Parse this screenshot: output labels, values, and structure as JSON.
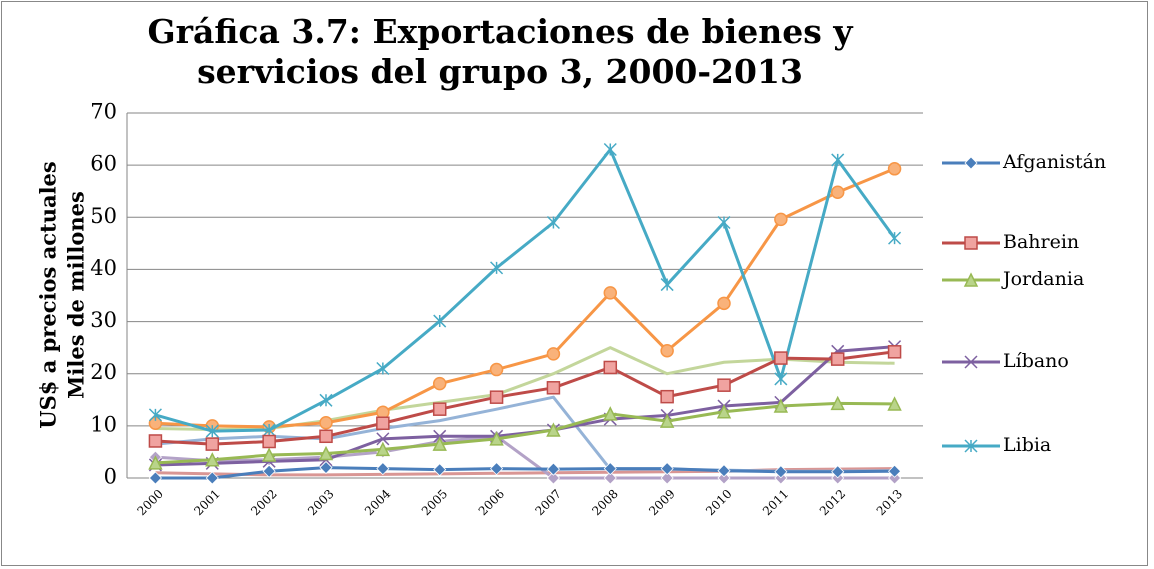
{
  "chart_data": {
    "type": "line",
    "title": "Gráfica 3.7: Exportaciones de bienes y servicios del grupo 3, 2000-2013",
    "y_label": [
      "US$ a precios actuales",
      "Miles de millones"
    ],
    "categories": [
      "2000",
      "2001",
      "2002",
      "2003",
      "2004",
      "2005",
      "2006",
      "2007",
      "2008",
      "2009",
      "2010",
      "2011",
      "2012",
      "2013"
    ],
    "ylim": [
      0,
      70
    ],
    "yticks": [
      0,
      10,
      20,
      30,
      40,
      50,
      60,
      70
    ],
    "grid": true,
    "legend": "right",
    "series": [
      {
        "name": "Afganistán",
        "color": "#4a7ebb",
        "marker": "diamond",
        "values": [
          0,
          0,
          1.3,
          2,
          1.8,
          1.6,
          1.8,
          1.7,
          1.8,
          1.8,
          1.4,
          1.2,
          1.2,
          1.3
        ]
      },
      {
        "name": "Bahrein",
        "color": "#be4b48",
        "marker": "square",
        "values": [
          7.1,
          6.5,
          7,
          8,
          10.5,
          13.2,
          15.5,
          17.3,
          21.2,
          15.6,
          17.8,
          23,
          22.8,
          24.2
        ]
      },
      {
        "name": "Jordania",
        "color": "#98b954",
        "marker": "triangle",
        "values": [
          2.9,
          3.5,
          4.4,
          4.7,
          5.5,
          6.5,
          7.5,
          9.2,
          12.3,
          10.9,
          12.7,
          13.8,
          14.3,
          14.2
        ]
      },
      {
        "name": "Líbano",
        "color": "#7d60a0",
        "marker": "x",
        "values": [
          2.5,
          2.8,
          3.2,
          3.5,
          7.5,
          8,
          8,
          9.2,
          11.3,
          12,
          13.8,
          14.5,
          24.3,
          25.2
        ]
      },
      {
        "name": "Libia",
        "color": "#46aac5",
        "marker": "asterisk",
        "values": [
          12.1,
          9,
          9.2,
          14.9,
          21,
          30.1,
          40.3,
          49,
          63,
          37.1,
          49,
          19,
          61,
          46
        ]
      },
      {
        "color": "#f79646",
        "marker": "circle",
        "values": [
          10.5,
          10,
          9.8,
          10.6,
          12.6,
          18.1,
          20.8,
          23.8,
          35.5,
          24.4,
          33.5,
          49.6,
          54.8,
          59.3
        ]
      },
      {
        "color": "#c3d69b",
        "values": [
          9.5,
          9.3,
          9.5,
          11,
          13,
          14.5,
          16,
          20,
          25,
          20,
          22.2,
          22.8,
          22.2,
          22
        ]
      },
      {
        "color": "#95b3d7",
        "values": [
          6.5,
          7.5,
          8,
          7.5,
          9.5,
          11,
          13.2,
          15.5,
          1.7,
          1.7,
          1.5,
          1.3,
          1.3,
          1.4
        ]
      },
      {
        "color": "#b3a2c7",
        "marker": "diamond",
        "values": [
          4,
          3.3,
          3.5,
          4,
          5,
          7,
          8,
          0,
          0,
          0,
          0,
          0,
          0,
          0
        ]
      },
      {
        "color": "#d99694",
        "values": [
          1,
          0.8,
          0.6,
          0.6,
          0.7,
          0.8,
          0.9,
          1,
          1.1,
          1.2,
          1.3,
          1.6,
          1.7,
          1.8
        ]
      }
    ]
  }
}
